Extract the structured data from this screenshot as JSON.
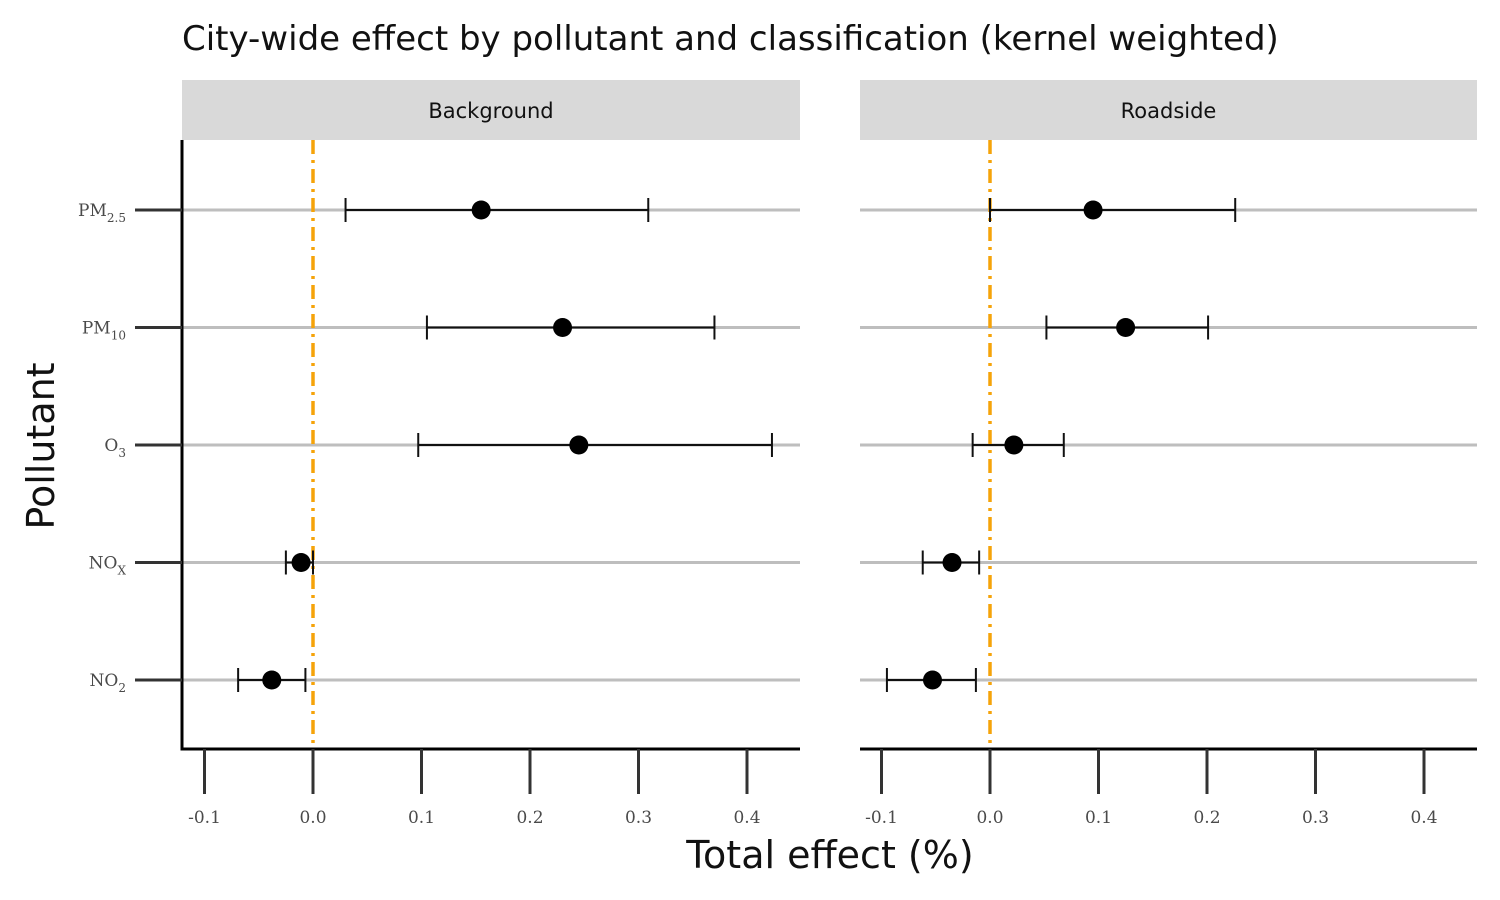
{
  "chart_data": {
    "type": "scatter",
    "title": "City-wide effect by pollutant and classification (kernel weighted)",
    "xlabel": "Total effect (%)",
    "ylabel": "Pollutant",
    "xlim": [
      -0.12,
      0.45
    ],
    "xticks": [
      "-0.1",
      "0.0",
      "0.1",
      "0.2",
      "0.3",
      "0.4"
    ],
    "xtick_values": [
      -0.1,
      0.0,
      0.1,
      0.2,
      0.3,
      0.4
    ],
    "reference_line": {
      "x": 0,
      "color": "#f5a30a",
      "style": "dot-dash"
    },
    "grid": "horizontal",
    "categories": [
      {
        "base": "PM",
        "sub": "2.5"
      },
      {
        "base": "PM",
        "sub": "10"
      },
      {
        "base": "O",
        "sub": "3"
      },
      {
        "base": "NO",
        "sub": "X"
      },
      {
        "base": "NO",
        "sub": "2"
      }
    ],
    "facets": [
      {
        "label": "Background",
        "estimates": [
          0.155,
          0.23,
          0.245,
          -0.011,
          -0.038
        ],
        "lower": [
          0.03,
          0.105,
          0.097,
          -0.025,
          -0.069
        ],
        "upper": [
          0.309,
          0.37,
          0.423,
          0.0,
          -0.007
        ]
      },
      {
        "label": "Roadside",
        "estimates": [
          0.095,
          0.125,
          0.022,
          -0.035,
          -0.053
        ],
        "lower": [
          0.0,
          0.052,
          -0.016,
          -0.062,
          -0.095
        ],
        "upper": [
          0.226,
          0.201,
          0.068,
          -0.01,
          -0.013
        ]
      }
    ],
    "colors": {
      "point": "#000000",
      "errorbar": "#111111",
      "gridline": "#bebebe",
      "strip": "#d9d9d9",
      "reference": "#f5a30a"
    }
  }
}
